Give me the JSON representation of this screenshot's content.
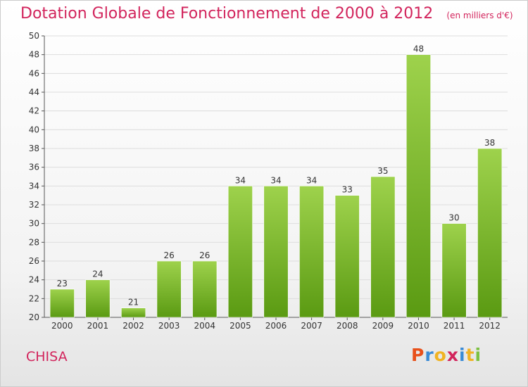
{
  "header": {
    "title": "Dotation Globale de Fonctionnement de 2000 à 2012",
    "subtitle": "(en milliers d'€)"
  },
  "footer": {
    "commune": "CHISA",
    "logo_text": "Proxiti"
  },
  "colors": {
    "title": "#d2245c",
    "bar_top": "#9ed24c",
    "bar_bottom": "#5a9a12",
    "grid": "#dddddd",
    "logo_letters": [
      "#e8501a",
      "#3a8bd6",
      "#f0b323",
      "#d2245c",
      "#3a8bd6",
      "#f0b323",
      "#7cc142"
    ]
  },
  "chart_data": {
    "type": "bar",
    "title": "Dotation Globale de Fonctionnement de 2000 à 2012",
    "subtitle": "(en milliers d'€)",
    "categories": [
      "2000",
      "2001",
      "2002",
      "2003",
      "2004",
      "2005",
      "2006",
      "2007",
      "2008",
      "2009",
      "2010",
      "2011",
      "2012"
    ],
    "values": [
      23,
      24,
      21,
      26,
      26,
      34,
      34,
      34,
      33,
      35,
      48,
      30,
      38
    ],
    "xlabel": "",
    "ylabel": "",
    "ylim": [
      20,
      50
    ],
    "yticks": [
      20,
      22,
      24,
      26,
      28,
      30,
      32,
      34,
      36,
      38,
      40,
      42,
      44,
      46,
      48,
      50
    ],
    "grid": true,
    "data_labels": true
  }
}
